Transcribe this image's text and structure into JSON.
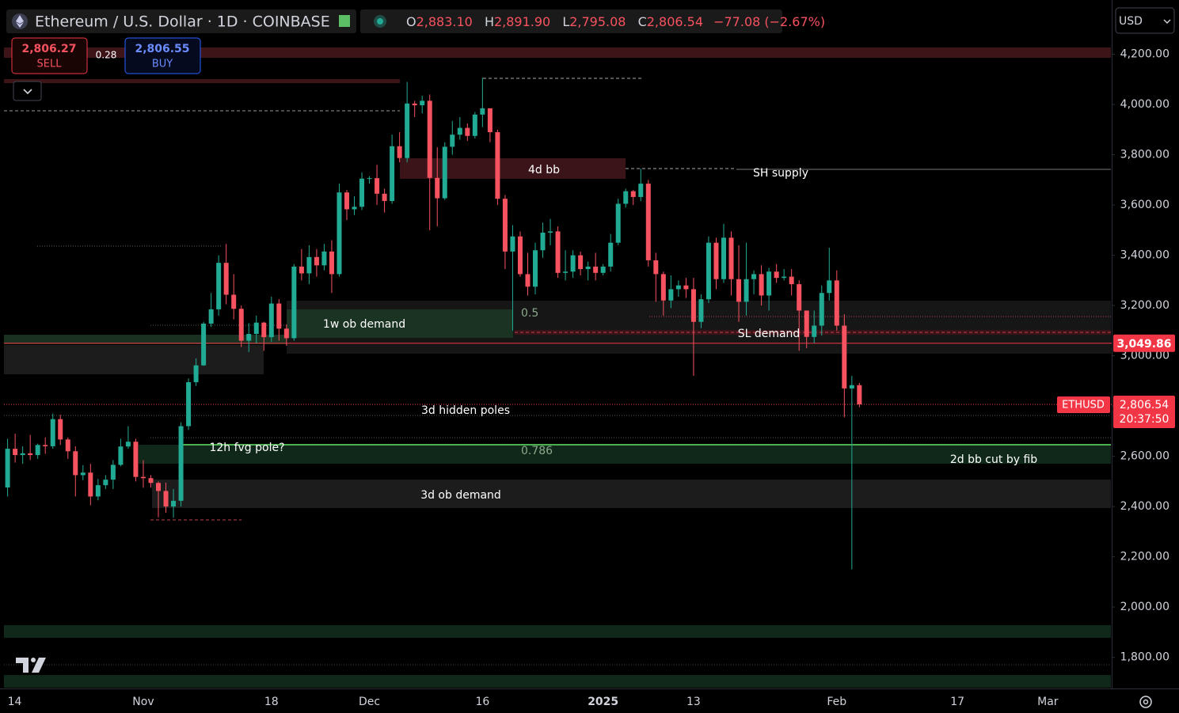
{
  "chart_data": {
    "type": "candlestick",
    "title": "Ethereum / U.S. Dollar · 1D · COINBASE",
    "ohlc_legend": {
      "labels": [
        "O",
        "H",
        "L",
        "C"
      ],
      "values": [
        "2,883.10",
        "2,891.90",
        "2,795.08",
        "2,806.54"
      ],
      "change": "−77.08 (−2.67%)"
    },
    "trade": {
      "sell_price": "2,806.27",
      "sell": "SELL",
      "spread": "0.28",
      "buy_price": "2,806.55",
      "buy": "BUY"
    },
    "currency": "USD",
    "up_color": "#22ab94",
    "down_color": "#f7525f",
    "grid": false,
    "categories": [
      "14",
      null,
      null,
      null,
      null,
      null,
      null,
      null,
      null,
      null,
      null,
      null,
      null,
      null,
      null,
      null,
      null,
      null,
      "Nov",
      null,
      null,
      null,
      null,
      null,
      null,
      null,
      null,
      null,
      null,
      null,
      null,
      null,
      null,
      null,
      null,
      "18",
      null,
      null,
      null,
      null,
      null,
      null,
      null,
      null,
      null,
      null,
      null,
      null,
      "Dec",
      null,
      null,
      null,
      null,
      null,
      null,
      null,
      null,
      null,
      null,
      null,
      null,
      null,
      null,
      "16",
      null,
      null,
      null,
      null,
      null,
      null,
      null,
      null,
      null,
      null,
      null,
      null,
      null,
      null,
      null,
      "2025",
      null,
      null,
      null,
      null,
      null,
      null,
      null,
      null,
      null,
      null,
      null,
      "13",
      null,
      null,
      null,
      null,
      null,
      null,
      null,
      null,
      null,
      null,
      null,
      null,
      null,
      null,
      null,
      null,
      null,
      null,
      "Feb",
      null,
      null,
      null,
      null,
      null,
      null,
      null,
      null,
      null,
      null,
      null,
      null,
      null,
      null,
      null,
      "17",
      null,
      null,
      null,
      null,
      null,
      null,
      null,
      null,
      null,
      null,
      null,
      "Mar",
      null,
      null,
      null,
      null,
      null,
      null,
      null
    ],
    "open": [
      2476,
      2630,
      2605,
      2612,
      2605,
      2645,
      2640,
      2748,
      2667,
      2620,
      2525,
      2535,
      2440,
      2485,
      2507,
      2566,
      2639,
      2658,
      2518,
      2513,
      2494,
      2462,
      2400,
      2423,
      2720,
      2895,
      2962,
      3128,
      3185,
      3370,
      3243,
      3187,
      3060,
      3087,
      3132,
      3074,
      3208,
      3108,
      3070,
      3355,
      3328,
      3393,
      3360,
      3415,
      3325,
      3650,
      3583,
      3593,
      3705,
      3707,
      3645,
      3616,
      3834,
      3787,
      4004,
      3997,
      4015,
      3708,
      3627,
      3832,
      3880,
      3907,
      3875,
      3960,
      3985,
      3890,
      3625,
      3415,
      3475,
      3325,
      3275,
      3420,
      3490,
      3495,
      3330,
      3335,
      3400,
      3345,
      3355,
      3330,
      3355,
      3450,
      3605,
      3655,
      3632,
      3685,
      3380,
      3325,
      3220,
      3265,
      3280,
      3265,
      3135,
      3225,
      3450,
      3305,
      3470,
      3305,
      3215,
      3305,
      3325,
      3240,
      3335,
      3310,
      3315,
      3285,
      3180,
      3075,
      3120,
      3250,
      3300,
      3120,
      2870,
      2883.1,
      null,
      null,
      null,
      null,
      null,
      null,
      null,
      null,
      null,
      null,
      null,
      null,
      null,
      null,
      null,
      null,
      null,
      null,
      null,
      null,
      null,
      null,
      null,
      null,
      null,
      null,
      null,
      null,
      null,
      null,
      null,
      null
    ],
    "high": [
      2670,
      2690,
      2640,
      2685,
      2650,
      2675,
      2770,
      2765,
      2675,
      2640,
      2565,
      2570,
      2510,
      2525,
      2585,
      2670,
      2720,
      2670,
      2585,
      2525,
      2500,
      2495,
      2470,
      2735,
      2910,
      2990,
      3135,
      3250,
      3400,
      3445,
      3325,
      3200,
      3130,
      3160,
      3135,
      3235,
      3225,
      3125,
      3365,
      3425,
      3440,
      3425,
      3445,
      3460,
      3685,
      3660,
      3635,
      3730,
      3715,
      3760,
      3665,
      3880,
      3890,
      4090,
      4015,
      4035,
      4040,
      3830,
      3850,
      3935,
      3950,
      3925,
      3970,
      4107,
      3985,
      3900,
      3640,
      3520,
      3495,
      3410,
      3450,
      3530,
      3545,
      3515,
      3420,
      3420,
      3415,
      3375,
      3410,
      3365,
      3485,
      3625,
      3665,
      3660,
      3745,
      3700,
      3410,
      3335,
      3320,
      3300,
      3310,
      3310,
      3245,
      3475,
      3470,
      3525,
      3495,
      3440,
      3450,
      3340,
      3360,
      3350,
      3365,
      3345,
      3345,
      3300,
      3180,
      3180,
      3280,
      3430,
      3340,
      3165,
      2920,
      2891.9,
      null,
      null,
      null,
      null,
      null,
      null,
      null,
      null,
      null,
      null,
      null,
      null,
      null,
      null,
      null,
      null,
      null,
      null,
      null,
      null,
      null,
      null,
      null,
      null,
      null,
      null,
      null,
      null,
      null,
      null,
      null,
      null
    ],
    "low": [
      2440,
      2575,
      2570,
      2585,
      2590,
      2610,
      2630,
      2645,
      2590,
      2440,
      2505,
      2405,
      2425,
      2470,
      2470,
      2560,
      2630,
      2500,
      2475,
      2475,
      2357,
      2375,
      2355,
      2400,
      2705,
      2880,
      2960,
      3115,
      3160,
      3205,
      3145,
      3035,
      3015,
      3050,
      3020,
      3055,
      3060,
      3040,
      3060,
      3300,
      3285,
      3315,
      3340,
      3250,
      3315,
      3540,
      3560,
      3580,
      3685,
      3600,
      3570,
      3605,
      3770,
      3770,
      3950,
      3965,
      3500,
      3515,
      3620,
      3800,
      3860,
      3855,
      3865,
      3910,
      3850,
      3600,
      3345,
      3100,
      3315,
      3240,
      3245,
      3390,
      3440,
      3310,
      3300,
      3310,
      3320,
      3300,
      3300,
      3320,
      3335,
      3440,
      3590,
      3600,
      3615,
      3355,
      3215,
      3160,
      3190,
      3235,
      3230,
      2920,
      3110,
      3210,
      3265,
      3290,
      3240,
      3135,
      3160,
      3245,
      3200,
      3180,
      3290,
      3300,
      3240,
      3020,
      3030,
      3050,
      3080,
      3220,
      3100,
      2755,
      2150,
      2795.08,
      null,
      null,
      null,
      null,
      null,
      null,
      null,
      null,
      null,
      null,
      null,
      null,
      null,
      null,
      null,
      null,
      null,
      null,
      null,
      null,
      null,
      null,
      null,
      null,
      null,
      null,
      null,
      null,
      null,
      null,
      null,
      null
    ],
    "close": [
      2630,
      2605,
      2612,
      2605,
      2645,
      2640,
      2748,
      2667,
      2620,
      2525,
      2535,
      2440,
      2485,
      2507,
      2566,
      2639,
      2658,
      2518,
      2513,
      2494,
      2462,
      2400,
      2423,
      2720,
      2895,
      2962,
      3128,
      3185,
      3370,
      3243,
      3187,
      3060,
      3087,
      3132,
      3074,
      3208,
      3108,
      3070,
      3355,
      3328,
      3393,
      3360,
      3415,
      3325,
      3650,
      3583,
      3593,
      3705,
      3707,
      3645,
      3616,
      3834,
      3787,
      4004,
      3997,
      4015,
      3708,
      3627,
      3832,
      3880,
      3907,
      3875,
      3960,
      3985,
      3890,
      3625,
      3415,
      3475,
      3325,
      3275,
      3420,
      3490,
      3495,
      3330,
      3335,
      3400,
      3345,
      3355,
      3330,
      3355,
      3450,
      3605,
      3655,
      3632,
      3685,
      3380,
      3325,
      3220,
      3265,
      3280,
      3265,
      3135,
      3225,
      3450,
      3305,
      3470,
      3305,
      3215,
      3305,
      3325,
      3240,
      3335,
      3310,
      3315,
      3285,
      3180,
      3075,
      3120,
      3250,
      3300,
      3120,
      2870,
      2883.1,
      2806.54,
      null,
      null,
      null,
      null,
      null,
      null,
      null,
      null,
      null,
      null,
      null,
      null,
      null,
      null,
      null,
      null,
      null,
      null,
      null,
      null,
      null,
      null,
      null,
      null,
      null,
      null,
      null,
      null,
      null,
      null,
      null,
      null
    ],
    "ylim": [
      1676,
      4416
    ],
    "yticks": [
      {
        "value": 1800,
        "label": "1,800.00"
      },
      {
        "value": 2000,
        "label": "2,000.00"
      },
      {
        "value": 2200,
        "label": "2,200.00"
      },
      {
        "value": 2400,
        "label": "2,400.00"
      },
      {
        "value": 2600,
        "label": "2,600.00"
      },
      {
        "value": 2800,
        "label": "2,800.00"
      },
      {
        "value": 3000,
        "label": "3,000.00"
      },
      {
        "value": 3200,
        "label": "3,200.00"
      },
      {
        "value": 3400,
        "label": "3,400.00"
      },
      {
        "value": 3600,
        "label": "3,600.00"
      },
      {
        "value": 3800,
        "label": "3,800.00"
      },
      {
        "value": 4000,
        "label": "4,000.00"
      },
      {
        "value": 4200,
        "label": "4,200.00"
      }
    ],
    "price_line": {
      "value": 3049.86,
      "label": "3,049.86"
    },
    "last_price": {
      "value": 2806.54,
      "label": "2,806.54",
      "symbol": "ETHUSD",
      "countdown": "20:37:50"
    },
    "annotations": [
      "4d bb",
      "SH supply",
      "1w ob demand",
      "0.5",
      "SL demand",
      "3d hidden poles",
      "12h fvg pole?",
      "0.786",
      "2d bb cut by fib",
      "3d ob demand"
    ]
  }
}
